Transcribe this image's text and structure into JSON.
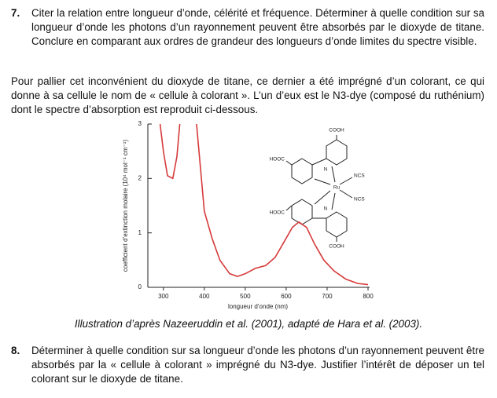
{
  "question_7": {
    "number": "7.",
    "text": "Citer la relation entre longueur d’onde, célérité et fréquence. Déterminer à quelle condition sur sa longueur d’onde les photons d’un rayonnement peuvent être absorbés par le dioxyde de titane. Conclure en comparant aux ordres de grandeur des longueurs d’onde limites du spectre visible."
  },
  "paragraph": "Pour pallier cet inconvénient du dioxyde de titane, ce dernier a été imprégné d’un colorant, ce qui donne à sa cellule le nom de « cellule à colorant ». L’un d’eux est le N3-dye (composé du ruthénium) dont le spectre d’absorption est reproduit ci-dessous.",
  "chart_data": {
    "type": "line",
    "x_label": "longueur d’onde (nm)",
    "y_label": "coefficient d’extinction molaire (10⁴ mol⁻¹ cm⁻¹)",
    "x": [
      292,
      300,
      310,
      323,
      333,
      340,
      360,
      381,
      400,
      419,
      438,
      462,
      481,
      500,
      525,
      550,
      573,
      596,
      615,
      631,
      650,
      669,
      692,
      717,
      746,
      775,
      800
    ],
    "series": [
      {
        "color": "#d63a3a",
        "values": [
          3,
          2.5,
          2.05,
          2.0,
          2.4,
          3,
          null,
          3,
          1.4,
          0.9,
          0.5,
          0.25,
          0.2,
          0.25,
          0.35,
          0.4,
          0.55,
          0.85,
          1.1,
          1.2,
          1.1,
          0.8,
          0.5,
          0.3,
          0.15,
          0.07,
          0.05
        ]
      }
    ],
    "xlim": [
      262,
      800
    ],
    "xticks": [
      300,
      400,
      500,
      600,
      700,
      800
    ],
    "ylim": [
      0,
      3
    ],
    "yticks": [
      0,
      1,
      2,
      3
    ],
    "annotations": [
      "COOH",
      "HOOC",
      "N",
      "NCS",
      "Ru",
      "NCS",
      "HOOC",
      "N",
      "COOH"
    ]
  },
  "caption": "Illustration d’après Nazeeruddin et al. (2001), adapté de Hara et al. (2003).",
  "question_8": {
    "number": "8.",
    "text": "Déterminer à quelle condition sur sa longueur d’onde les photons d’un rayonnement peuvent être absorbés par la « cellule à colorant » imprégné du N3-dye. Justifier l’intérêt de déposer un tel colorant sur le dioxyde de titane."
  }
}
